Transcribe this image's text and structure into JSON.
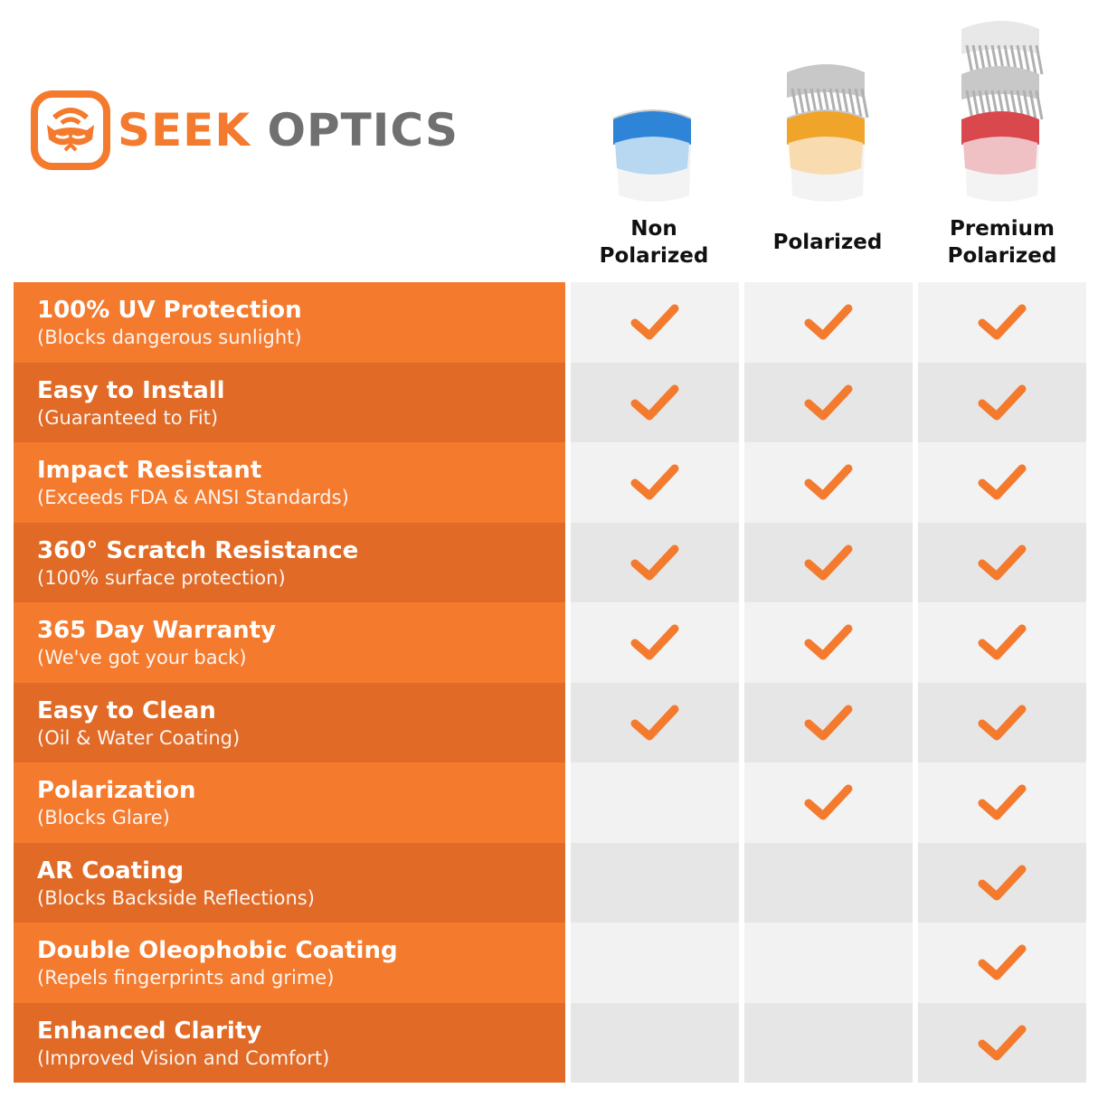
{
  "brand": {
    "name_part1": "SEEK",
    "name_part2": "OPTICS",
    "accent": "#f47a2e"
  },
  "columns": [
    {
      "label_line1": "Non",
      "label_line2": "Polarized",
      "lens_color": "#2e84d6",
      "lens_tint": "#b8d8f2"
    },
    {
      "label_line1": "",
      "label_line2": "Polarized",
      "lens_color": "#f0a429",
      "lens_tint": "#f8dcb0"
    },
    {
      "label_line1": "Premium",
      "label_line2": "Polarized",
      "lens_color": "#d9484d",
      "lens_tint": "#efc0c4"
    }
  ],
  "features": [
    {
      "title": "100% UV Protection",
      "subtitle": "(Blocks dangerous sunlight)",
      "checks": [
        true,
        true,
        true
      ]
    },
    {
      "title": "Easy to Install",
      "subtitle": "(Guaranteed to Fit)",
      "checks": [
        true,
        true,
        true
      ]
    },
    {
      "title": "Impact Resistant",
      "subtitle": "(Exceeds FDA & ANSI Standards)",
      "checks": [
        true,
        true,
        true
      ]
    },
    {
      "title": "360° Scratch Resistance",
      "subtitle": "(100% surface protection)",
      "checks": [
        true,
        true,
        true
      ]
    },
    {
      "title": "365 Day Warranty",
      "subtitle": "(We've got your back)",
      "checks": [
        true,
        true,
        true
      ]
    },
    {
      "title": "Easy to Clean",
      "subtitle": "(Oil & Water Coating)",
      "checks": [
        true,
        true,
        true
      ]
    },
    {
      "title": "Polarization",
      "subtitle": "(Blocks Glare)",
      "checks": [
        false,
        true,
        true
      ]
    },
    {
      "title": "AR Coating",
      "subtitle": "(Blocks Backside Reflections)",
      "checks": [
        false,
        false,
        true
      ]
    },
    {
      "title": "Double Oleophobic Coating",
      "subtitle": "(Repels fingerprints and grime)",
      "checks": [
        false,
        false,
        true
      ]
    },
    {
      "title": "Enhanced Clarity",
      "subtitle": "(Improved Vision and Comfort)",
      "checks": [
        false,
        false,
        true
      ]
    }
  ],
  "check_icon": "checkmark-icon"
}
